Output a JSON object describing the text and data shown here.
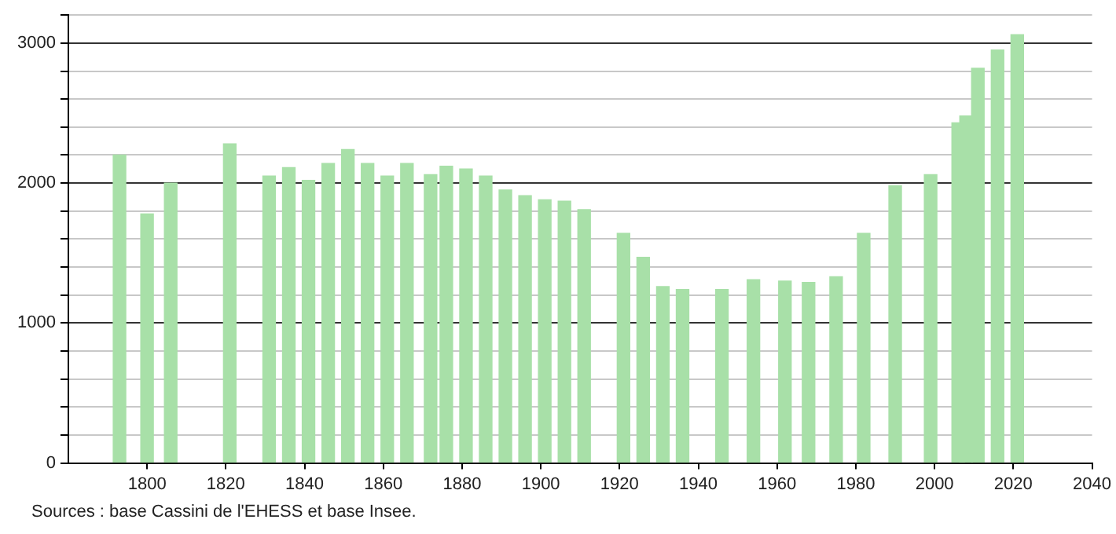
{
  "chart_data": {
    "type": "bar",
    "x": [
      1793,
      1800,
      1806,
      1821,
      1831,
      1836,
      1841,
      1846,
      1851,
      1856,
      1861,
      1866,
      1872,
      1876,
      1881,
      1886,
      1891,
      1896,
      1901,
      1906,
      1911,
      1921,
      1926,
      1931,
      1936,
      1946,
      1954,
      1962,
      1968,
      1975,
      1982,
      1990,
      1999,
      2006,
      2008,
      2011,
      2016,
      2021
    ],
    "values": [
      2200,
      1780,
      2000,
      2280,
      2050,
      2110,
      2020,
      2140,
      2240,
      2140,
      2050,
      2140,
      2060,
      2120,
      2100,
      2050,
      1950,
      1910,
      1880,
      1870,
      1810,
      1640,
      1470,
      1260,
      1240,
      1240,
      1310,
      1300,
      1290,
      1330,
      1640,
      1980,
      2060,
      2430,
      2480,
      2820,
      2950,
      3060
    ],
    "color": "#a8e0a8",
    "xlim": [
      1780,
      2040
    ],
    "xticks": [
      1800,
      1820,
      1840,
      1860,
      1880,
      1900,
      1920,
      1940,
      1960,
      1980,
      2000,
      2020,
      2040
    ],
    "ylim": [
      0,
      3200
    ],
    "yticks": [
      0,
      {
        "value": 200,
        "label": null
      },
      {
        "value": 400,
        "label": null
      },
      {
        "value": 600,
        "label": null
      },
      {
        "value": 800,
        "label": null
      },
      1000,
      {
        "value": 1200,
        "label": null
      },
      {
        "value": 1400,
        "label": null
      },
      {
        "value": 1600,
        "label": null
      },
      {
        "value": 1800,
        "label": null
      },
      2000,
      {
        "value": 2200,
        "label": null
      },
      {
        "value": 2400,
        "label": null
      },
      {
        "value": 2600,
        "label": null
      },
      {
        "value": 2800,
        "label": null
      },
      3000,
      {
        "value": 3200,
        "label": null
      }
    ],
    "grid": "y",
    "legend": false,
    "annotations": [
      "Sources : base Cassini de l'EHESS et base Insee."
    ]
  }
}
